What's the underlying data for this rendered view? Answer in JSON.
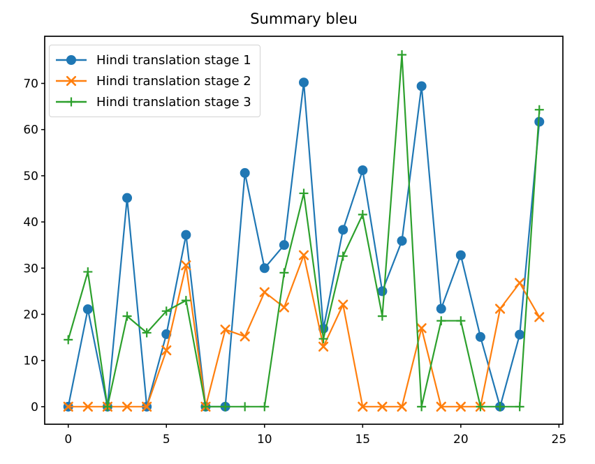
{
  "chart_data": {
    "type": "line",
    "title": "Summary bleu",
    "xlabel": "",
    "ylabel": "",
    "x": [
      0,
      1,
      2,
      3,
      4,
      5,
      6,
      7,
      8,
      9,
      10,
      11,
      12,
      13,
      14,
      15,
      16,
      17,
      18,
      19,
      20,
      21,
      22,
      23,
      24
    ],
    "series": [
      {
        "name": "Hindi translation stage 1",
        "color": "#1f77b4",
        "marker": "circle",
        "values": [
          0,
          21.1,
          0,
          45.2,
          0,
          15.7,
          37.2,
          0,
          0,
          50.6,
          30.0,
          35.0,
          70.2,
          16.9,
          38.3,
          51.2,
          25.0,
          35.9,
          69.4,
          21.2,
          32.8,
          15.1,
          0,
          15.6,
          61.7
        ]
      },
      {
        "name": "Hindi translation stage 2",
        "color": "#ff7f0e",
        "marker": "x",
        "values": [
          0,
          0,
          0,
          0,
          0,
          12.2,
          30.6,
          0,
          16.7,
          15.2,
          24.8,
          21.5,
          32.8,
          13.0,
          22.1,
          0,
          0,
          0,
          17.0,
          0,
          0,
          0,
          21.2,
          26.8,
          19.4
        ]
      },
      {
        "name": "Hindi translation stage 3",
        "color": "#2ca02c",
        "marker": "plus",
        "values": [
          14.5,
          29.2,
          0,
          19.6,
          16.0,
          20.7,
          23.0,
          0,
          0,
          0,
          0,
          29.0,
          46.2,
          14.7,
          32.6,
          41.6,
          19.6,
          76.2,
          0,
          18.6,
          18.6,
          0,
          0,
          0,
          64.3
        ]
      }
    ],
    "xticks": [
      0,
      5,
      10,
      15,
      20,
      25
    ],
    "yticks": [
      0,
      10,
      20,
      30,
      40,
      50,
      60,
      70
    ],
    "xlim": [
      -1.2,
      25.2
    ],
    "ylim": [
      -3.8,
      80.2
    ],
    "grid": false,
    "legend_position": "upper-left",
    "axis_color": "#000000",
    "background_color": "#ffffff"
  }
}
